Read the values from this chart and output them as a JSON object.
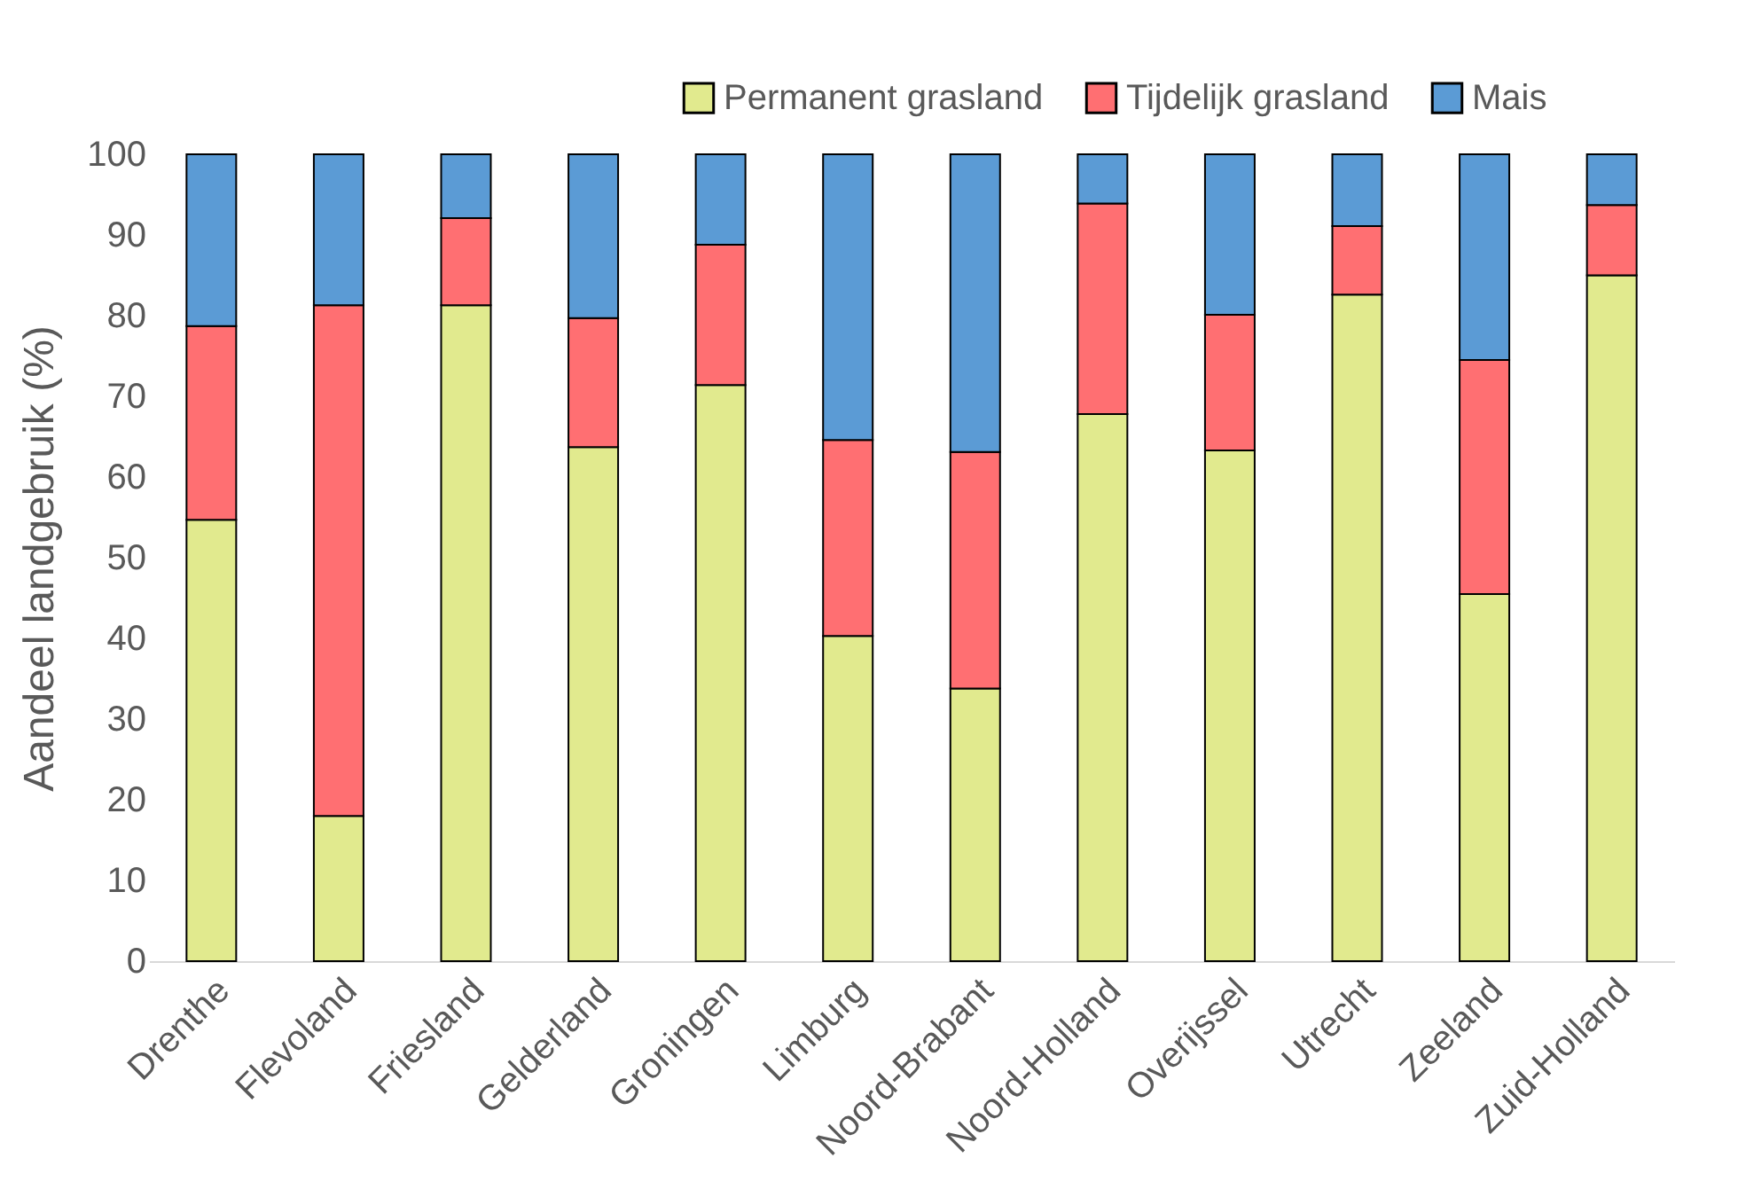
{
  "chart_data": {
    "type": "bar",
    "stacked": true,
    "ylabel": "Aandeel landgebruik (%)",
    "categories": [
      "Drenthe",
      "Flevoland",
      "Friesland",
      "Gelderland",
      "Groningen",
      "Limburg",
      "Noord-Brabant",
      "Noord-Holland",
      "Overijssel",
      "Utrecht",
      "Zeeland",
      "Zuid-Holland"
    ],
    "series": [
      {
        "name": "Permanent grasland",
        "color": "#e1ea8e",
        "values": [
          54.7,
          18.0,
          81.3,
          63.7,
          71.4,
          40.3,
          33.8,
          67.8,
          63.3,
          82.6,
          45.5,
          85.0
        ]
      },
      {
        "name": "Tijdelijk grasland",
        "color": "#ff6f72",
        "values": [
          24.0,
          63.3,
          10.8,
          16.0,
          17.4,
          24.3,
          29.3,
          26.1,
          16.8,
          8.5,
          29.0,
          8.7
        ]
      },
      {
        "name": "Mais",
        "color": "#5b9bd5",
        "values": [
          21.3,
          18.7,
          7.9,
          20.3,
          11.2,
          35.4,
          36.9,
          6.1,
          19.9,
          8.9,
          25.5,
          6.3
        ]
      }
    ],
    "ylim": [
      0,
      100
    ],
    "yticks": [
      0,
      10,
      20,
      30,
      40,
      50,
      60,
      70,
      80,
      90,
      100
    ],
    "grid": false,
    "legend": "top right"
  }
}
